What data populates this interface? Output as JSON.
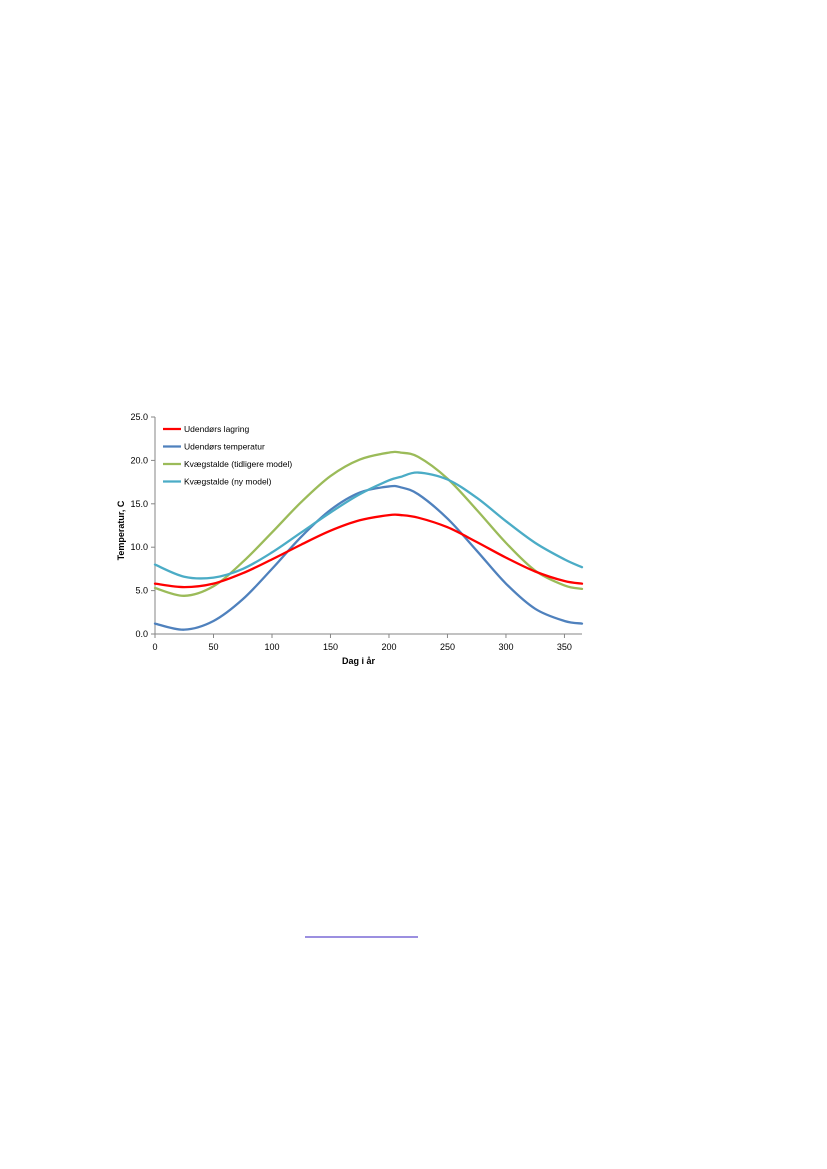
{
  "chart_data": {
    "type": "line",
    "xlabel": "Dag i år",
    "ylabel": "Temperatur, C",
    "xlim": [
      0,
      365
    ],
    "ylim": [
      0,
      25
    ],
    "xticks": [
      0,
      50,
      100,
      150,
      200,
      250,
      300,
      350
    ],
    "yticks": [
      "0.0",
      "5.0",
      "10.0",
      "15.0",
      "20.0",
      "25.0"
    ],
    "grid": false,
    "legend_position": "top-left",
    "x": [
      0,
      25,
      50,
      75,
      100,
      125,
      150,
      175,
      200,
      210,
      225,
      250,
      275,
      300,
      325,
      350,
      365
    ],
    "series": [
      {
        "name": "Udendørs lagring",
        "color": "#ff0000",
        "values": [
          5.8,
          5.4,
          5.8,
          7.0,
          8.6,
          10.3,
          11.9,
          13.1,
          13.7,
          13.7,
          13.4,
          12.3,
          10.6,
          8.8,
          7.2,
          6.1,
          5.8
        ]
      },
      {
        "name": "Udendørs temperatur",
        "color": "#4f81bd",
        "values": [
          1.2,
          0.5,
          1.5,
          4.0,
          7.5,
          11.2,
          14.3,
          16.3,
          17.0,
          16.9,
          16.1,
          13.3,
          9.6,
          5.8,
          2.9,
          1.5,
          1.2
        ]
      },
      {
        "name": "Kvægstalde (tidligere model)",
        "color": "#9bbb59",
        "values": [
          5.3,
          4.4,
          5.5,
          8.3,
          11.7,
          15.2,
          18.2,
          20.1,
          20.9,
          20.9,
          20.4,
          17.9,
          14.3,
          10.5,
          7.3,
          5.6,
          5.2
        ]
      },
      {
        "name": "Kvægstalde (ny model)",
        "color": "#4bacc6",
        "values": [
          8.0,
          6.6,
          6.5,
          7.5,
          9.4,
          11.7,
          14.0,
          16.1,
          17.7,
          18.1,
          18.6,
          17.8,
          15.7,
          13.0,
          10.5,
          8.6,
          7.7
        ]
      }
    ]
  }
}
